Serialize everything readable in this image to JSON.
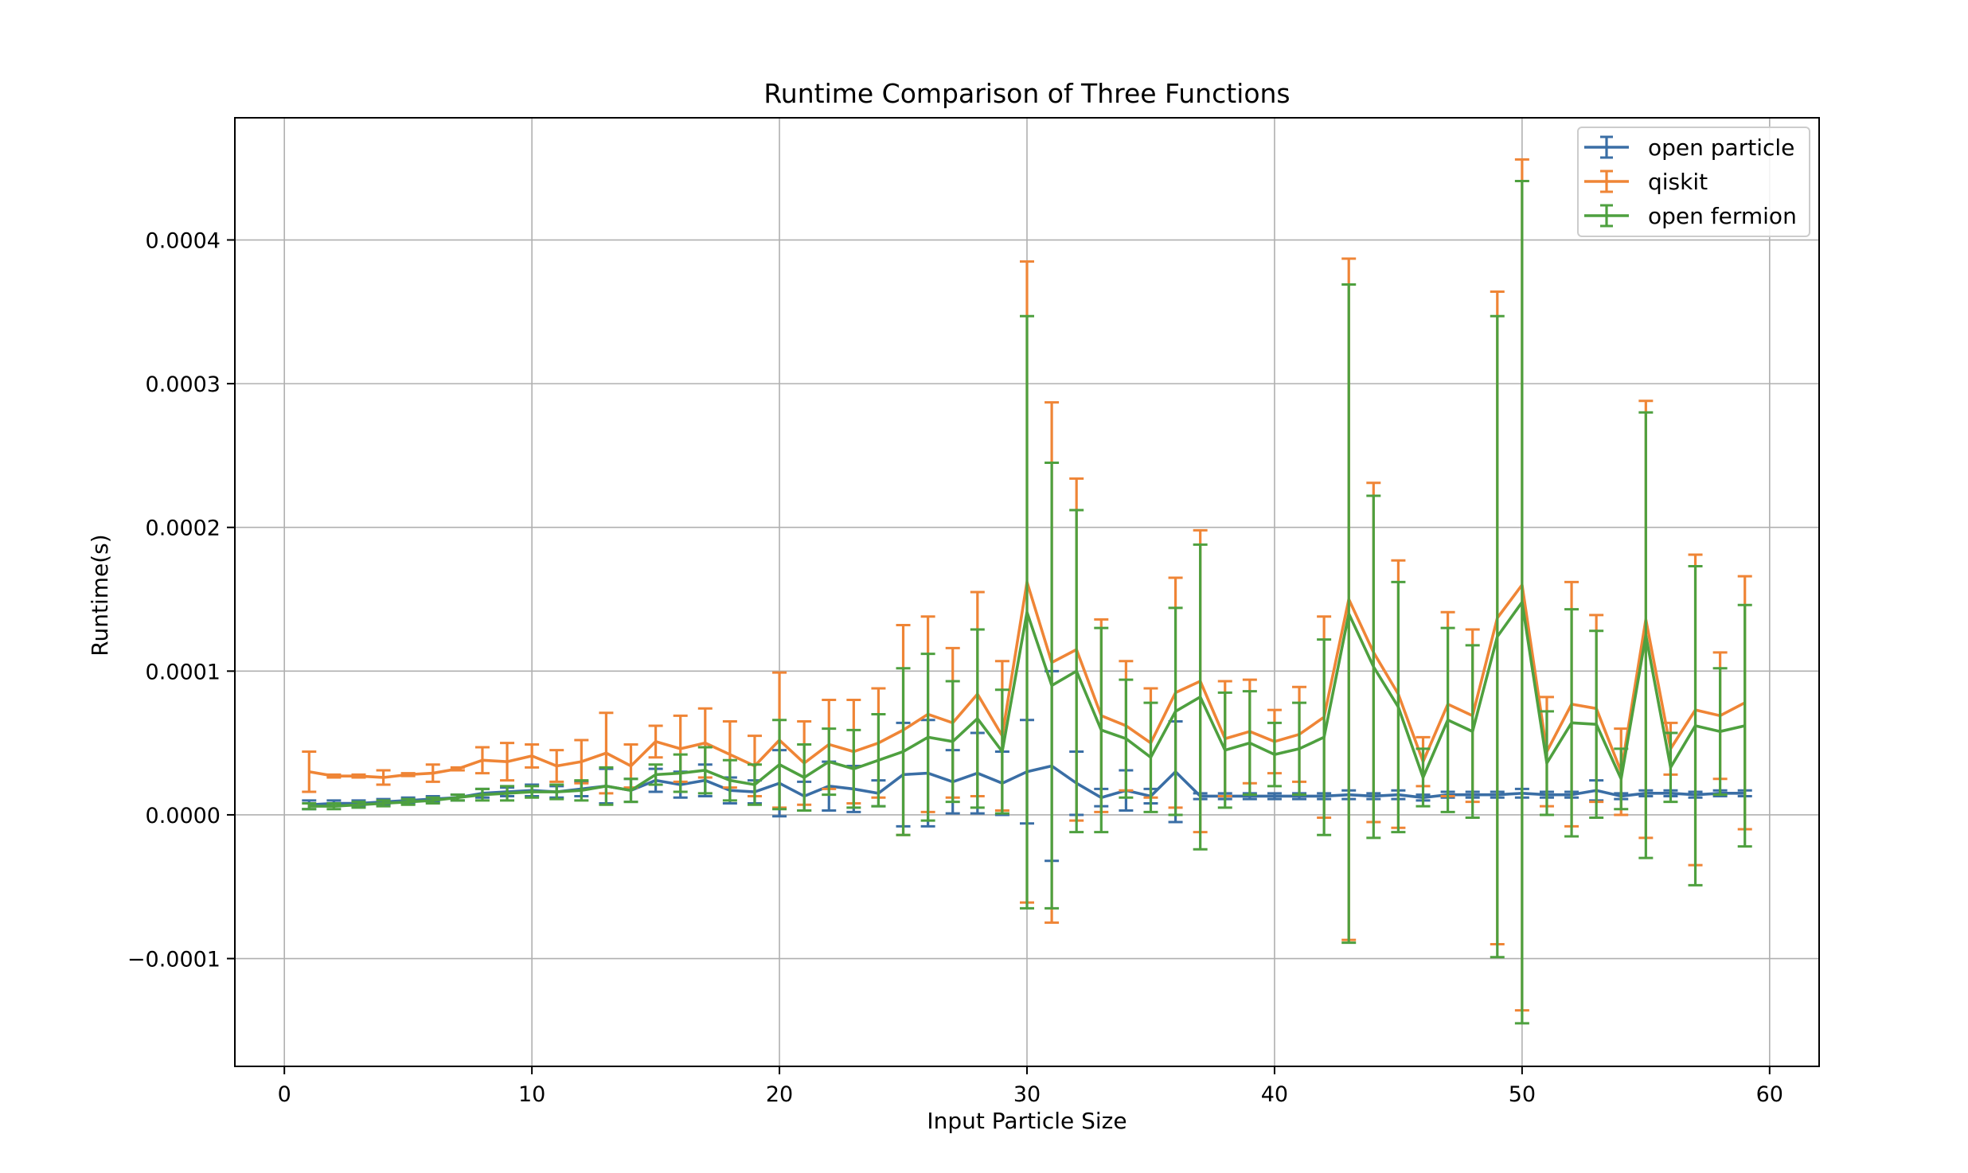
{
  "chart_data": {
    "type": "line",
    "title": "Runtime Comparison of Three Functions",
    "xlabel": "Input Particle Size",
    "ylabel": "Runtime(s)",
    "xlim": [
      -2,
      62
    ],
    "ylim": [
      -0.000175,
      0.000485
    ],
    "xticks": [
      0,
      10,
      20,
      30,
      40,
      50,
      60
    ],
    "xtick_labels": [
      "0",
      "10",
      "20",
      "30",
      "40",
      "50",
      "60"
    ],
    "yticks": [
      -0.0001,
      0,
      0.0001,
      0.0002,
      0.0003,
      0.0004
    ],
    "ytick_labels": [
      "−0.0001",
      "0.0000",
      "0.0001",
      "0.0002",
      "0.0003",
      "0.0004"
    ],
    "grid": true,
    "legend_position": "top-right",
    "x": [
      1,
      2,
      3,
      4,
      5,
      6,
      7,
      8,
      9,
      10,
      11,
      12,
      13,
      14,
      15,
      16,
      17,
      18,
      19,
      20,
      21,
      22,
      23,
      24,
      25,
      26,
      27,
      28,
      29,
      30,
      31,
      32,
      33,
      34,
      35,
      36,
      37,
      38,
      39,
      40,
      41,
      42,
      43,
      44,
      45,
      46,
      47,
      48,
      49,
      50,
      51,
      52,
      53,
      54,
      55,
      56,
      57,
      58,
      59
    ],
    "series": [
      {
        "name": "open particle",
        "color": "#3a6ea5",
        "values": [
          7e-06,
          8e-06,
          8e-06,
          9e-06,
          1e-05,
          1.1e-05,
          1.2e-05,
          1.5e-05,
          1.6e-05,
          1.7e-05,
          1.6e-05,
          1.8e-05,
          2e-05,
          1.7e-05,
          2.4e-05,
          2.1e-05,
          2.4e-05,
          1.7e-05,
          1.6e-05,
          2.2e-05,
          1.3e-05,
          2e-05,
          1.8e-05,
          1.5e-05,
          2.8e-05,
          2.9e-05,
          2.3e-05,
          2.9e-05,
          2.2e-05,
          3e-05,
          3.4e-05,
          2.2e-05,
          1.2e-05,
          1.7e-05,
          1.3e-05,
          3e-05,
          1.3e-05,
          1.3e-05,
          1.3e-05,
          1.3e-05,
          1.3e-05,
          1.3e-05,
          1.4e-05,
          1.3e-05,
          1.4e-05,
          1.2e-05,
          1.4e-05,
          1.4e-05,
          1.4e-05,
          1.5e-05,
          1.4e-05,
          1.4e-05,
          1.7e-05,
          1.3e-05,
          1.5e-05,
          1.5e-05,
          1.4e-05,
          1.5e-05,
          1.5e-05
        ],
        "errors": [
          3e-06,
          2e-06,
          2e-06,
          2e-06,
          2e-06,
          2e-06,
          2e-06,
          3e-06,
          3e-06,
          4e-06,
          4e-06,
          5e-06,
          1.2e-05,
          8e-06,
          8e-06,
          9e-06,
          1.1e-05,
          9e-06,
          8e-06,
          2.3e-05,
          1e-05,
          1.7e-05,
          1.6e-05,
          9e-06,
          3.6e-05,
          3.7e-05,
          2.2e-05,
          2.8e-05,
          2.2e-05,
          3.6e-05,
          6.6e-05,
          2.2e-05,
          6e-06,
          1.4e-05,
          5e-06,
          3.5e-05,
          2e-06,
          2e-06,
          2e-06,
          2e-06,
          2e-06,
          2e-06,
          3e-06,
          2e-06,
          3e-06,
          2e-06,
          2e-06,
          2e-06,
          2e-06,
          3e-06,
          2e-06,
          2e-06,
          7e-06,
          2e-06,
          2e-06,
          2e-06,
          2e-06,
          2e-06,
          2e-06
        ]
      },
      {
        "name": "qiskit",
        "color": "#ef8536",
        "values": [
          3e-05,
          2.7e-05,
          2.7e-05,
          2.6e-05,
          2.8e-05,
          2.9e-05,
          3.2e-05,
          3.8e-05,
          3.7e-05,
          4.1e-05,
          3.4e-05,
          3.7e-05,
          4.3e-05,
          3.4e-05,
          5.1e-05,
          4.6e-05,
          5e-05,
          4.2e-05,
          3.4e-05,
          5.2e-05,
          3.6e-05,
          4.9e-05,
          4.4e-05,
          5e-05,
          5.9e-05,
          7e-05,
          6.4e-05,
          8.4e-05,
          5.5e-05,
          0.000162,
          0.000106,
          0.000115,
          6.9e-05,
          6.2e-05,
          5e-05,
          8.5e-05,
          9.3e-05,
          5.3e-05,
          5.8e-05,
          5.1e-05,
          5.6e-05,
          6.8e-05,
          0.00015,
          0.000113,
          8.4e-05,
          3.7e-05,
          7.7e-05,
          6.9e-05,
          0.000137,
          0.00016,
          4.4e-05,
          7.7e-05,
          7.4e-05,
          3e-05,
          0.000136,
          4.6e-05,
          7.3e-05,
          6.9e-05,
          7.8e-05
        ],
        "errors": [
          1.4e-05,
          1e-06,
          1e-06,
          5e-06,
          1e-06,
          6e-06,
          1e-06,
          9e-06,
          1.3e-05,
          8e-06,
          1.1e-05,
          1.5e-05,
          2.8e-05,
          1.5e-05,
          1.1e-05,
          2.3e-05,
          2.4e-05,
          2.3e-05,
          2.1e-05,
          4.7e-05,
          2.9e-05,
          3.1e-05,
          3.6e-05,
          3.8e-05,
          7.3e-05,
          6.8e-05,
          5.2e-05,
          7.1e-05,
          5.2e-05,
          0.000223,
          0.000181,
          0.000119,
          6.7e-05,
          4.5e-05,
          3.8e-05,
          8e-05,
          0.000105,
          4e-05,
          3.6e-05,
          2.2e-05,
          3.3e-05,
          7e-05,
          0.000237,
          0.000118,
          9.3e-05,
          1.7e-05,
          6.4e-05,
          6e-05,
          0.000227,
          0.000296,
          3.8e-05,
          8.5e-05,
          6.5e-05,
          3e-05,
          0.000152,
          1.8e-05,
          0.000108,
          4.4e-05,
          8.8e-05
        ]
      },
      {
        "name": "open fermion",
        "color": "#4ea03f",
        "values": [
          6e-06,
          6e-06,
          7e-06,
          8e-06,
          9e-06,
          1e-05,
          1.2e-05,
          1.4e-05,
          1.5e-05,
          1.6e-05,
          1.6e-05,
          1.7e-05,
          2e-05,
          1.7e-05,
          2.8e-05,
          2.9e-05,
          3.1e-05,
          2.4e-05,
          2.1e-05,
          3.5e-05,
          2.6e-05,
          3.7e-05,
          3.2e-05,
          3.8e-05,
          4.4e-05,
          5.4e-05,
          5.1e-05,
          6.7e-05,
          4.4e-05,
          0.000141,
          9e-05,
          0.0001,
          5.9e-05,
          5.3e-05,
          4e-05,
          7.2e-05,
          8.2e-05,
          4.5e-05,
          5e-05,
          4.2e-05,
          4.6e-05,
          5.4e-05,
          0.00014,
          0.000103,
          7.5e-05,
          2.6e-05,
          6.6e-05,
          5.8e-05,
          0.000124,
          0.000148,
          3.6e-05,
          6.4e-05,
          6.3e-05,
          2.5e-05,
          0.000125,
          3.3e-05,
          6.2e-05,
          5.8e-05,
          6.2e-05
        ],
        "errors": [
          2e-06,
          2e-06,
          2e-06,
          2e-06,
          2e-06,
          2e-06,
          2e-06,
          4e-06,
          5e-06,
          4e-06,
          5e-06,
          7e-06,
          1.3e-05,
          8e-06,
          7e-06,
          1.3e-05,
          1.6e-05,
          1.4e-05,
          1.4e-05,
          3.1e-05,
          2.3e-05,
          2.3e-05,
          2.7e-05,
          3.2e-05,
          5.8e-05,
          5.8e-05,
          4.2e-05,
          6.2e-05,
          4.3e-05,
          0.000206,
          0.000155,
          0.000112,
          7.1e-05,
          4.1e-05,
          3.8e-05,
          7.2e-05,
          0.000106,
          4e-05,
          3.6e-05,
          2.2e-05,
          3.2e-05,
          6.8e-05,
          0.000229,
          0.000119,
          8.7e-05,
          2e-05,
          6.4e-05,
          6e-05,
          0.000223,
          0.000293,
          3.6e-05,
          7.9e-05,
          6.5e-05,
          2.1e-05,
          0.000155,
          2.4e-05,
          0.000111,
          4.4e-05,
          8.4e-05
        ]
      }
    ]
  }
}
